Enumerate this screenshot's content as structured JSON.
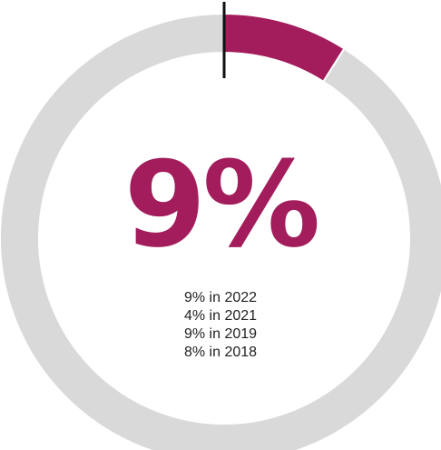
{
  "chart_data": {
    "type": "pie",
    "variant": "donut",
    "highlight_value": 9,
    "highlight_label": "9%",
    "slices": [
      {
        "name": "",
        "value": 9,
        "color": "#A31D5C"
      },
      {
        "name": "",
        "value": 91,
        "color": "#D9D9D9"
      }
    ],
    "history": [
      {
        "text": "9% in 2022",
        "year": 2022,
        "value": 9
      },
      {
        "text": "4% in 2021",
        "year": 2021,
        "value": 4
      },
      {
        "text": "9% in 2019",
        "year": 2019,
        "value": 9
      },
      {
        "text": "8% in 2018",
        "year": 2018,
        "value": 8
      }
    ]
  },
  "colors": {
    "accent": "#A31D5C",
    "track": "#D9D9D9",
    "marker": "#111111",
    "text": "#222222"
  }
}
